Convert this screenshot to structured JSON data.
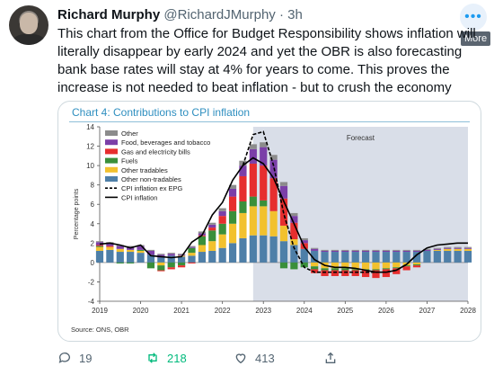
{
  "tweet": {
    "author_name": "Richard Murphy",
    "handle": "@RichardJMurphy",
    "separator": "·",
    "time": "3h",
    "text": "This chart from the Office for Budget Responsibility shows inflation will literally disappear by early 2024 and yet the OBR is also forecasting bank base rates will stay at 4% for years to come. This proves the increase is not needed to beat inflation - but to crush the economy",
    "more_tooltip": "More",
    "more_icon": "ellipsis-icon"
  },
  "actions": {
    "replies": "19",
    "retweets": "218",
    "likes": "413",
    "retweet_color": "#00ba7c"
  },
  "chart_data": {
    "type": "bar",
    "title": "Chart 4: Contributions to CPI inflation",
    "ylabel": "Percentage points",
    "xlabel": "",
    "source": "Source: ONS, OBR",
    "forecast_label": "Forecast",
    "forecast_start": 2022.75,
    "ylim": [
      -4,
      14
    ],
    "yticks": [
      -4,
      -2,
      0,
      2,
      4,
      6,
      8,
      10,
      12,
      14
    ],
    "xlim": [
      2019,
      2028
    ],
    "xticks": [
      2019,
      2020,
      2021,
      2022,
      2023,
      2024,
      2025,
      2026,
      2027,
      2028
    ],
    "legend": [
      "Other",
      "Food, beverages and tobacco",
      "Gas and electricity bills",
      "Fuels",
      "Other tradables",
      "Other non-tradables",
      "CPI inflation ex EPG",
      "CPI inflation"
    ],
    "colors": {
      "Other": "#8c8c8c",
      "Food, beverages and tobacco": "#7b3fa8",
      "Gas and electricity bills": "#e62e2e",
      "Fuels": "#3a8f3a",
      "Other tradables": "#f2c12e",
      "Other non-tradables": "#4e7fa8"
    },
    "quarters": [
      2019.0,
      2019.25,
      2019.5,
      2019.75,
      2020.0,
      2020.25,
      2020.5,
      2020.75,
      2021.0,
      2021.25,
      2021.5,
      2021.75,
      2022.0,
      2022.25,
      2022.5,
      2022.75,
      2023.0,
      2023.25,
      2023.5,
      2023.75,
      2024.0,
      2024.25,
      2024.5,
      2024.75,
      2025.0,
      2025.25,
      2025.5,
      2025.75,
      2026.0,
      2026.25,
      2026.5,
      2026.75,
      2027.0,
      2027.25,
      2027.5,
      2027.75,
      2028.0
    ],
    "series": [
      {
        "name": "Other non-tradables",
        "values": [
          1.2,
          1.3,
          1.1,
          1.1,
          1.0,
          0.8,
          0.5,
          0.7,
          0.6,
          0.7,
          1.1,
          1.2,
          1.5,
          2.0,
          2.5,
          2.8,
          2.8,
          2.7,
          2.2,
          1.8,
          1.4,
          1.2,
          1.1,
          1.1,
          1.1,
          1.1,
          1.1,
          1.1,
          1.1,
          1.1,
          1.1,
          1.1,
          1.2,
          1.2,
          1.2,
          1.2,
          1.2
        ]
      },
      {
        "name": "Other tradables",
        "values": [
          0.4,
          0.3,
          0.3,
          0.2,
          0.2,
          0.0,
          -0.3,
          0.0,
          0.1,
          0.3,
          0.7,
          1.0,
          1.4,
          2.0,
          2.6,
          3.0,
          3.0,
          2.6,
          1.6,
          0.6,
          0.0,
          -0.4,
          -0.6,
          -0.6,
          -0.6,
          -0.7,
          -0.7,
          -0.7,
          -0.6,
          -0.5,
          -0.3,
          -0.2,
          0.0,
          0.1,
          0.2,
          0.2,
          0.2
        ]
      },
      {
        "name": "Fuels",
        "values": [
          0.1,
          0.0,
          -0.1,
          -0.1,
          0.1,
          -0.6,
          -0.5,
          -0.5,
          -0.3,
          0.5,
          0.9,
          1.1,
          1.1,
          1.3,
          1.2,
          1.0,
          0.6,
          0.0,
          -0.6,
          -0.7,
          -0.5,
          -0.3,
          -0.2,
          -0.2,
          -0.2,
          -0.1,
          -0.1,
          -0.1,
          -0.1,
          -0.1,
          -0.1,
          -0.1,
          0.0,
          0.0,
          0.0,
          0.0,
          0.0
        ]
      },
      {
        "name": "Gas and electricity bills",
        "values": [
          0.1,
          0.1,
          0.0,
          0.0,
          0.0,
          0.0,
          -0.1,
          -0.2,
          -0.2,
          -0.1,
          0.1,
          0.3,
          0.8,
          1.5,
          2.6,
          3.4,
          3.6,
          3.4,
          2.8,
          1.7,
          0.6,
          -0.4,
          -0.6,
          -0.6,
          -0.6,
          -0.6,
          -0.7,
          -0.8,
          -0.8,
          -0.6,
          -0.4,
          -0.2,
          0.0,
          0.0,
          0.0,
          0.0,
          0.0
        ]
      },
      {
        "name": "Food, beverages and tobacco",
        "values": [
          0.3,
          0.3,
          0.3,
          0.3,
          0.4,
          0.4,
          0.3,
          0.2,
          0.1,
          0.1,
          0.2,
          0.3,
          0.5,
          0.8,
          1.1,
          1.5,
          1.9,
          1.9,
          1.3,
          0.7,
          0.3,
          0.2,
          0.1,
          0.1,
          0.1,
          0.1,
          0.1,
          0.1,
          0.1,
          0.1,
          0.1,
          0.1,
          0.1,
          0.1,
          0.1,
          0.1,
          0.1
        ]
      },
      {
        "name": "Other",
        "values": [
          0.1,
          0.1,
          0.1,
          0.1,
          0.1,
          0.1,
          0.1,
          0.1,
          0.1,
          0.1,
          0.2,
          0.2,
          0.3,
          0.4,
          0.5,
          0.5,
          0.5,
          0.5,
          0.4,
          0.3,
          0.2,
          0.1,
          0.1,
          0.1,
          0.1,
          0.1,
          0.1,
          0.1,
          0.1,
          0.1,
          0.1,
          0.1,
          0.1,
          0.1,
          0.1,
          0.1,
          0.1
        ]
      }
    ],
    "lines": [
      {
        "name": "CPI inflation",
        "style": "solid",
        "values": [
          1.9,
          2.0,
          1.8,
          1.5,
          1.8,
          0.7,
          0.6,
          0.5,
          0.6,
          2.1,
          2.8,
          4.9,
          6.2,
          8.5,
          10.0,
          10.8,
          10.2,
          8.7,
          6.3,
          4.0,
          1.6,
          0.3,
          -0.3,
          -0.5,
          -0.5,
          -0.6,
          -0.8,
          -1.0,
          -1.0,
          -0.8,
          -0.2,
          0.8,
          1.5,
          1.8,
          1.9,
          2.0,
          2.0
        ]
      },
      {
        "name": "CPI inflation ex EPG",
        "style": "dashed",
        "values": [
          null,
          null,
          null,
          null,
          null,
          null,
          null,
          null,
          null,
          null,
          null,
          null,
          null,
          null,
          10.0,
          13.2,
          13.5,
          10.0,
          5.0,
          1.5,
          -0.5,
          -1.0,
          -1.0,
          -1.0,
          -1.0,
          -1.0,
          -1.0,
          -1.0,
          -1.0,
          -0.8,
          -0.2,
          0.8,
          null,
          null,
          null,
          null,
          null
        ]
      }
    ]
  }
}
